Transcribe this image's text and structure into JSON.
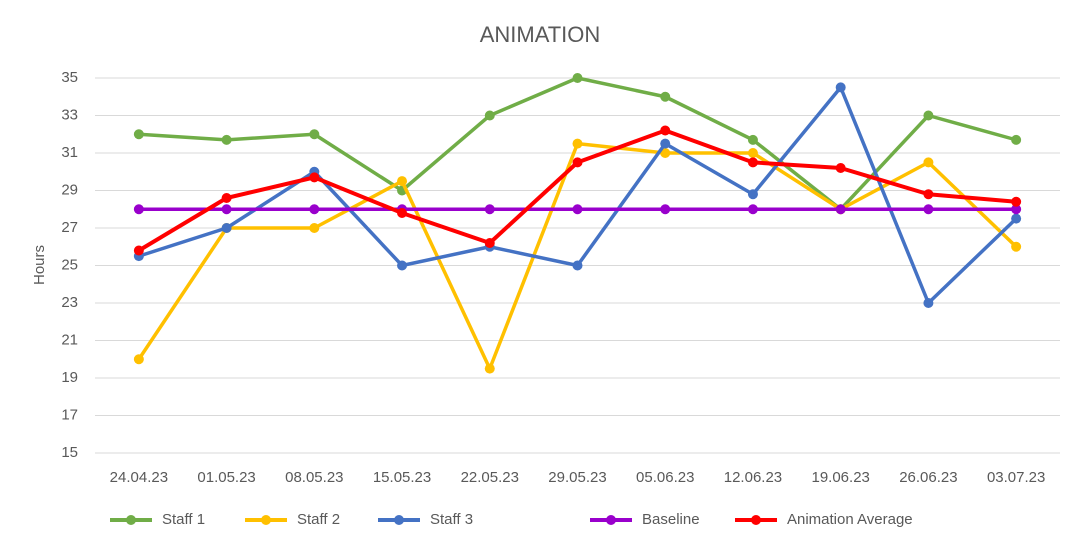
{
  "chart_data": {
    "type": "line",
    "title": "ANIMATION",
    "y_label": "Hours",
    "categories": [
      "24.04.23",
      "01.05.23",
      "08.05.23",
      "15.05.23",
      "22.05.23",
      "29.05.23",
      "05.06.23",
      "12.06.23",
      "19.06.23",
      "26.06.23",
      "03.07.23"
    ],
    "series": [
      {
        "name": "Staff 1",
        "color": "#70ad47",
        "values": [
          32,
          31.7,
          32,
          29,
          33,
          35,
          34,
          31.7,
          28,
          33,
          31.7
        ]
      },
      {
        "name": "Staff 2",
        "color": "#ffc000",
        "values": [
          20,
          27,
          27,
          29.5,
          19.5,
          31.5,
          31,
          31,
          28,
          30.5,
          26
        ]
      },
      {
        "name": "Staff 3",
        "color": "#4472c4",
        "values": [
          25.5,
          27,
          30,
          25,
          26,
          25,
          31.5,
          28.8,
          34.5,
          23,
          27.5
        ]
      },
      {
        "name": "Baseline",
        "color": "#9900cc",
        "values": [
          28,
          28,
          28,
          28,
          28,
          28,
          28,
          28,
          28,
          28,
          28
        ]
      },
      {
        "name": "Animation Average",
        "color": "#ff0000",
        "values": [
          25.8,
          28.6,
          29.7,
          27.8,
          26.2,
          30.5,
          32.2,
          30.5,
          30.2,
          28.8,
          28.4
        ]
      }
    ],
    "ylim": [
      15,
      35
    ],
    "yticks": [
      15,
      17,
      19,
      21,
      23,
      25,
      27,
      29,
      31,
      33,
      35
    ],
    "grid": true,
    "legend": "bottom"
  }
}
